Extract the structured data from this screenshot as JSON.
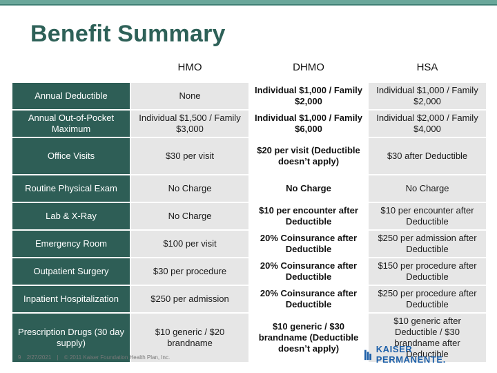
{
  "slide": {
    "title": "Benefit Summary"
  },
  "table": {
    "headers": [
      "",
      "HMO",
      "DHMO",
      "HSA"
    ],
    "rows": [
      {
        "label": "Annual Deductible",
        "hmo": "None",
        "dhmo": "Individual $1,000 / Family $2,000",
        "hsa": "Individual $1,000 / Family $2,000"
      },
      {
        "label": "Annual Out-of-Pocket Maximum",
        "hmo": "Individual $1,500 / Family $3,000",
        "dhmo": "Individual $1,000 / Family $6,000",
        "hsa": "Individual $2,000 / Family $4,000"
      },
      {
        "label": "Office Visits",
        "hmo": "$30 per visit",
        "dhmo": "$20 per visit (Deductible doesn’t apply)",
        "hsa": "$30 after Deductible"
      },
      {
        "label": "Routine Physical Exam",
        "hmo": "No Charge",
        "dhmo": "No Charge",
        "hsa": "No Charge"
      },
      {
        "label": "Lab & X-Ray",
        "hmo": "No Charge",
        "dhmo": "$10 per encounter after Deductible",
        "hsa": "$10 per encounter after Deductible"
      },
      {
        "label": "Emergency Room",
        "hmo": "$100 per visit",
        "dhmo": "20% Coinsurance after Deductible",
        "hsa": "$250 per admission after Deductible"
      },
      {
        "label": "Outpatient Surgery",
        "hmo": "$30 per procedure",
        "dhmo": "20% Coinsurance after Deductible",
        "hsa": "$150 per procedure after Deductible"
      },
      {
        "label": "Inpatient Hospitalization",
        "hmo": "$250 per admission",
        "dhmo": "20% Coinsurance after Deductible",
        "hsa": "$250 per procedure after Deductible"
      },
      {
        "label": "Prescription Drugs (30 day supply)",
        "hmo": "$10 generic / $20 brandname",
        "dhmo": "$10 generic / $30 brandname (Deductible doesn’t apply)",
        "hsa": "$10 generic after Deductible / $30 brandname after Deductible"
      }
    ]
  },
  "footer": {
    "page_number": "9",
    "date": "2/27/2021",
    "separator": "|",
    "copyright": "© 2011 Kaiser Foundation Health Plan, Inc."
  },
  "logo": {
    "text": "KAISER PERMANENTE.",
    "color": "#1c5fa8"
  },
  "colors": {
    "label_bg": "#2e5e56",
    "alt_bg": "#e6e6e6",
    "title": "#2e6158"
  }
}
